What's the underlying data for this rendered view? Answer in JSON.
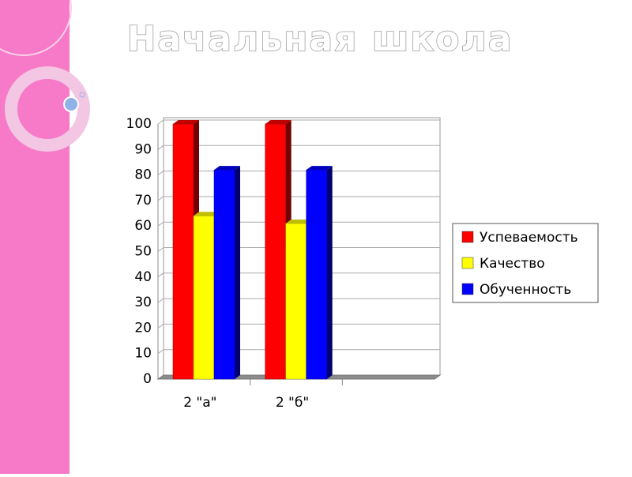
{
  "chart_data": {
    "type": "bar3d",
    "title": "Начальная школа",
    "categories": [
      "2 \"а\"",
      "2 \"б\"",
      null
    ],
    "series": [
      {
        "name": "Успеваемость",
        "color": "#ff0000",
        "values": [
          100,
          100,
          null
        ]
      },
      {
        "name": "Качество",
        "color": "#ffff00",
        "values": [
          64,
          61,
          null
        ]
      },
      {
        "name": "Обученность",
        "color": "#0000ff",
        "values": [
          82,
          82,
          null
        ]
      }
    ],
    "ylim": [
      0,
      100
    ],
    "yticks": [
      0,
      10,
      20,
      30,
      40,
      50,
      60,
      70,
      80,
      90,
      100
    ],
    "grid": true,
    "legend": "right"
  }
}
